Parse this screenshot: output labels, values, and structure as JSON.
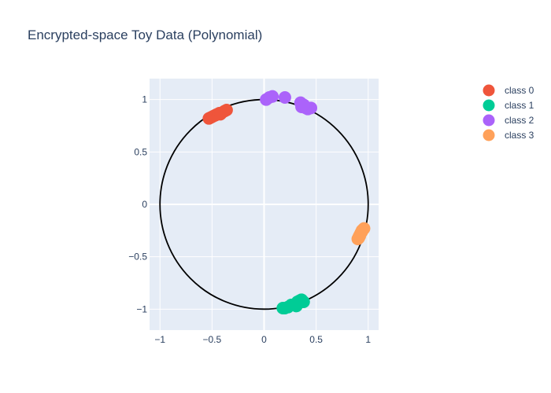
{
  "chart_data": {
    "type": "scatter",
    "title": "Encrypted-space Toy Data (Polynomial)",
    "xlabel": "",
    "ylabel": "",
    "xlim": [
      -1.1,
      1.1
    ],
    "ylim": [
      -1.2,
      1.2
    ],
    "xticks": [
      -1,
      -0.5,
      0,
      0.5,
      1
    ],
    "xtick_labels": [
      "−1",
      "−0.5",
      "0",
      "0.5",
      "1"
    ],
    "yticks": [
      -1,
      -0.5,
      0,
      0.5,
      1
    ],
    "ytick_labels": [
      "−1",
      "−0.5",
      "0",
      "0.5",
      "1"
    ],
    "grid": true,
    "legend_position": "top-right",
    "background": "#e5ecf6",
    "reference_shape": {
      "type": "circle",
      "center": [
        0,
        0
      ],
      "radius": 1,
      "color": "#000000"
    },
    "series": [
      {
        "name": "class 0",
        "color": "#ef553b",
        "points": [
          [
            -0.53,
            0.82
          ],
          [
            -0.51,
            0.83
          ],
          [
            -0.49,
            0.84
          ],
          [
            -0.47,
            0.85
          ],
          [
            -0.45,
            0.86
          ],
          [
            -0.43,
            0.87
          ],
          [
            -0.41,
            0.87
          ],
          [
            -0.38,
            0.89
          ],
          [
            -0.36,
            0.9
          ],
          [
            -0.42,
            0.86
          ]
        ]
      },
      {
        "name": "class 1",
        "color": "#00cc96",
        "points": [
          [
            0.18,
            -0.99
          ],
          [
            0.2,
            -0.99
          ],
          [
            0.23,
            -0.98
          ],
          [
            0.26,
            -0.96
          ],
          [
            0.31,
            -0.97
          ],
          [
            0.32,
            -0.93
          ],
          [
            0.34,
            -0.92
          ],
          [
            0.36,
            -0.91
          ],
          [
            0.38,
            -0.93
          ],
          [
            0.3,
            -0.95
          ]
        ]
      },
      {
        "name": "class 2",
        "color": "#ab63fa",
        "points": [
          [
            0.02,
            1.0
          ],
          [
            0.05,
            1.02
          ],
          [
            0.08,
            1.03
          ],
          [
            0.2,
            1.02
          ],
          [
            0.35,
            0.97
          ],
          [
            0.36,
            0.93
          ],
          [
            0.4,
            0.92
          ],
          [
            0.42,
            0.91
          ],
          [
            0.45,
            0.92
          ],
          [
            0.38,
            0.95
          ]
        ]
      },
      {
        "name": "class 3",
        "color": "#ffa15a",
        "points": [
          [
            0.9,
            -0.33
          ],
          [
            0.91,
            -0.31
          ],
          [
            0.92,
            -0.29
          ],
          [
            0.93,
            -0.27
          ],
          [
            0.94,
            -0.25
          ],
          [
            0.95,
            -0.24
          ],
          [
            0.96,
            -0.23
          ],
          [
            0.92,
            -0.3
          ],
          [
            0.94,
            -0.26
          ],
          [
            0.91,
            -0.32
          ]
        ]
      }
    ]
  }
}
